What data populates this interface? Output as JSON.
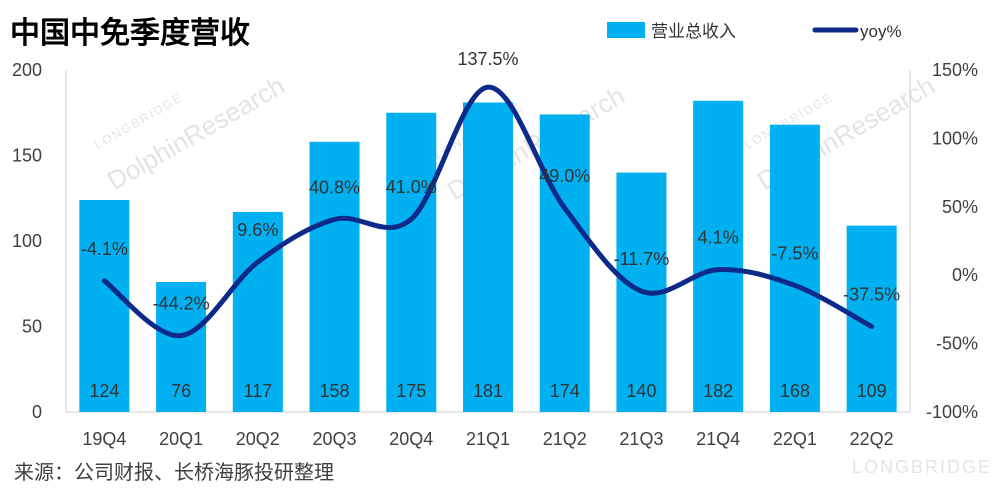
{
  "header": {
    "title": "中国中免季度营收"
  },
  "footer": {
    "source": "来源：公司财报、长桥海豚投研整理"
  },
  "watermark": {
    "brand": "LONGBRIDGE",
    "text": "DolphinResearch"
  },
  "chart_data": {
    "type": "bar+line",
    "categories": [
      "19Q4",
      "20Q1",
      "20Q2",
      "20Q3",
      "20Q4",
      "21Q1",
      "21Q2",
      "21Q3",
      "21Q4",
      "22Q1",
      "22Q2"
    ],
    "series": [
      {
        "name": "营业总收入",
        "type": "bar",
        "axis": "left",
        "color": "#00b0f0",
        "values": [
          124,
          76,
          117,
          158,
          175,
          181,
          174,
          140,
          182,
          168,
          109
        ],
        "labels": [
          "124",
          "76",
          "117",
          "158",
          "175",
          "181",
          "174",
          "140",
          "182",
          "168",
          "109"
        ]
      },
      {
        "name": "yoy%",
        "type": "line",
        "axis": "right",
        "color": "#0d2a8a",
        "values": [
          -4.1,
          -44.2,
          9.6,
          40.8,
          41.0,
          137.5,
          49.0,
          -11.7,
          4.1,
          -7.5,
          -37.5
        ],
        "labels": [
          "-4.1%",
          "-44.2%",
          "9.6%",
          "40.8%",
          "41.0%",
          "137.5%",
          "49.0%",
          "-11.7%",
          "4.1%",
          "-7.5%",
          "-37.5%"
        ]
      }
    ],
    "y_left": {
      "min": 0,
      "max": 200,
      "ticks": [
        0,
        50,
        100,
        150,
        200
      ],
      "tick_labels": [
        "0",
        "50",
        "100",
        "150",
        "200"
      ]
    },
    "y_right": {
      "min": -100,
      "max": 150,
      "ticks": [
        -100,
        -50,
        0,
        50,
        100,
        150
      ],
      "tick_labels": [
        "-100%",
        "-50%",
        "0%",
        "50%",
        "100%",
        "150%"
      ]
    },
    "grid": false,
    "legend": {
      "position": "top-right",
      "items": [
        "营业总收入",
        "yoy%"
      ]
    }
  }
}
